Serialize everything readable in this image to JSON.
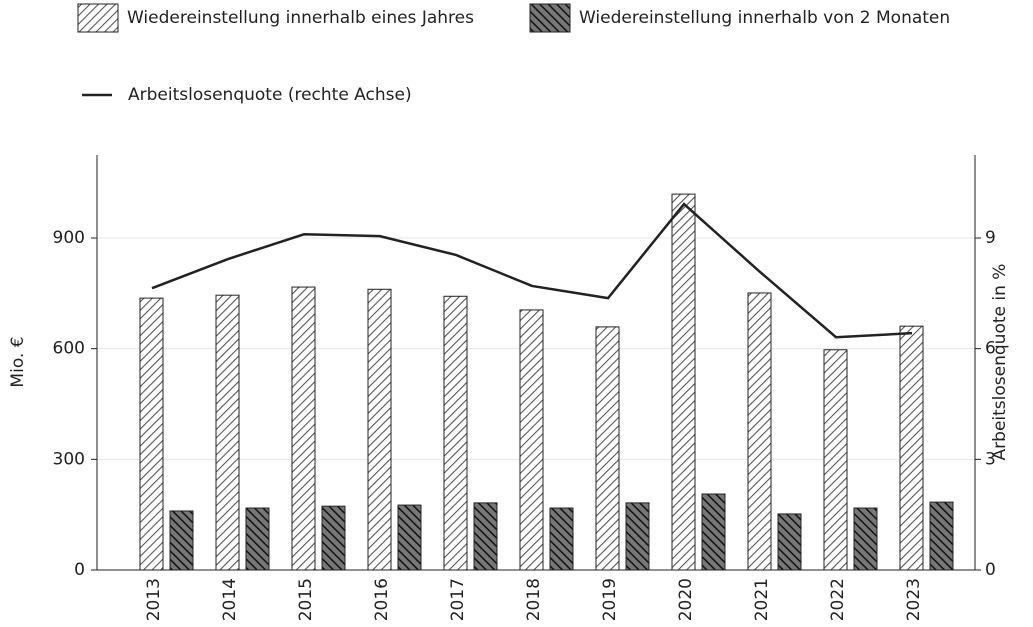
{
  "chart_data": {
    "type": "bar",
    "categories": [
      "2013",
      "2014",
      "2015",
      "2016",
      "2017",
      "2018",
      "2019",
      "2020",
      "2021",
      "2022",
      "2023"
    ],
    "series": [
      {
        "name": "Wiedereinstellung innerhalb eines Jahres",
        "color": "#ffffff",
        "values": [
          737,
          745,
          767,
          761,
          742,
          705,
          659,
          1019,
          751,
          597,
          661
        ]
      },
      {
        "name": "Wiedereinstellung innerhalb von 2 Monaten",
        "color": "#555555",
        "values": [
          160,
          168,
          173,
          176,
          182,
          168,
          182,
          206,
          152,
          168,
          184
        ]
      },
      {
        "name": "Arbeitslosenquote (rechte Achse)",
        "type": "line",
        "axis": "y2",
        "color": "#222222",
        "values": [
          7.64,
          8.43,
          9.1,
          9.05,
          8.54,
          7.7,
          7.37,
          9.92,
          8.08,
          6.31,
          6.42
        ]
      }
    ],
    "ylabel": "Mio. €",
    "y2label": "Arbeitslosenquote in %",
    "ylim": [
      0,
      1125
    ],
    "yticks": [
      0,
      300,
      600,
      900
    ],
    "y2lim": [
      0,
      11.25
    ],
    "y2ticks": [
      0,
      3,
      6,
      9
    ],
    "grid": true,
    "legend": "top"
  }
}
